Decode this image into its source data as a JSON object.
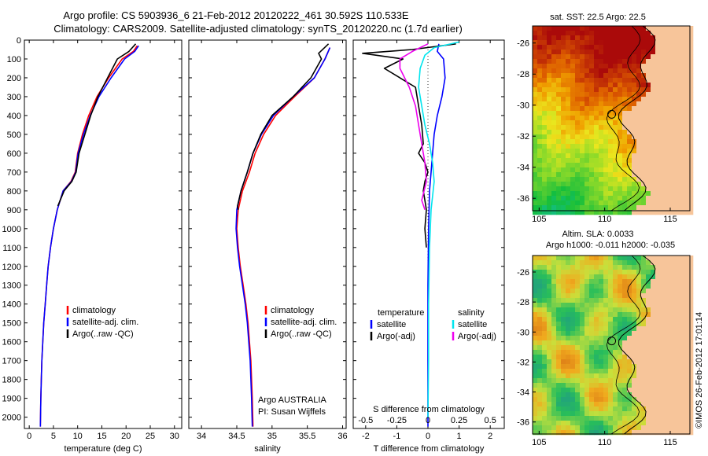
{
  "header": {
    "line1": "Argo profile: CS 5903936_6 21-Feb-2012 20120222_461 30.592S 110.533E",
    "line2": "Climatology: CARS2009. Satellite-adjusted climatology: synTS_20120220.nc (1.7d earlier)"
  },
  "credit": "©IMOS 26-Feb-2012 17:01:14",
  "colors": {
    "climatology": "#ff0000",
    "satellite": "#0000ff",
    "argo": "#000000",
    "sat_salinity": "#00e5ee",
    "argo_salinity": "#ee00ee",
    "land": "#f7c59a",
    "frame": "#000000"
  },
  "chart_data": [
    {
      "id": "temperature",
      "type": "line",
      "xlabel": "temperature (deg C)",
      "ylabel": "",
      "xlim": [
        -1,
        31.5
      ],
      "ylim": [
        2060,
        0
      ],
      "y_inverted": true,
      "xticks": [
        0,
        5,
        10,
        15,
        20,
        25,
        30
      ],
      "xtick_labels": [
        "0",
        "5",
        "10",
        "15",
        "20",
        "25",
        "30"
      ],
      "yticks": [
        0,
        100,
        200,
        300,
        400,
        500,
        600,
        700,
        800,
        900,
        1000,
        1100,
        1200,
        1300,
        1400,
        1500,
        1600,
        1700,
        1800,
        1900,
        2000
      ],
      "ytick_labels": [
        "0",
        "100",
        "200",
        "300",
        "400",
        "500",
        "600",
        "700",
        "800",
        "900",
        "1000",
        "1100",
        "1200",
        "1300",
        "1400",
        "1500",
        "1600",
        "1700",
        "1800",
        "1900",
        "2000"
      ],
      "legend": {
        "position": "lower-middle",
        "entries": [
          "climatology",
          "satellite-adj. clim.",
          "Argo(..raw -QC)"
        ]
      },
      "series": [
        {
          "name": "climatology",
          "color": "#ff0000",
          "x": [
            22.3,
            21.5,
            19.2,
            16.4,
            14.0,
            12.3,
            11.0,
            10.0,
            9.5,
            8.6,
            7.0,
            5.8,
            5.0,
            4.4,
            3.9,
            3.6,
            3.3,
            3.0,
            2.8,
            2.6,
            2.5,
            2.4,
            2.3
          ],
          "y": [
            30,
            60,
            100,
            200,
            300,
            400,
            500,
            600,
            700,
            750,
            800,
            900,
            1000,
            1100,
            1200,
            1300,
            1400,
            1500,
            1600,
            1700,
            1800,
            1900,
            2050
          ]
        },
        {
          "name": "satellite-adj. clim.",
          "color": "#0000ff",
          "x": [
            22.6,
            21.8,
            19.7,
            16.9,
            14.4,
            12.6,
            11.2,
            10.1,
            9.6,
            8.7,
            7.0,
            5.8,
            5.0,
            4.4,
            3.9,
            3.6,
            3.3,
            3.0,
            2.8,
            2.6,
            2.5,
            2.4,
            2.3
          ],
          "y": [
            30,
            60,
            100,
            200,
            300,
            400,
            500,
            600,
            700,
            750,
            800,
            900,
            1000,
            1100,
            1200,
            1300,
            1400,
            1500,
            1600,
            1700,
            1800,
            1900,
            2050
          ]
        },
        {
          "name": "Argo(..raw -QC)",
          "color": "#000000",
          "x": [
            22.0,
            20.6,
            18.2,
            16.2,
            14.2,
            12.7,
            11.5,
            10.3,
            9.7,
            8.8,
            7.2,
            5.9
          ],
          "y": [
            20,
            60,
            100,
            200,
            300,
            400,
            500,
            600,
            700,
            750,
            800,
            880
          ]
        }
      ]
    },
    {
      "id": "salinity",
      "type": "line",
      "xlabel": "salinity",
      "ylabel": "",
      "xlim": [
        33.82,
        36.05
      ],
      "ylim": [
        2060,
        0
      ],
      "y_inverted": true,
      "xticks": [
        34,
        34.5,
        35,
        35.5,
        36
      ],
      "xtick_labels": [
        "34",
        "34.5",
        "35",
        "35.5",
        "36"
      ],
      "legend": {
        "position": "lower-middle",
        "entries": [
          "climatology",
          "satellite-adj. clim.",
          "Argo(..raw -QC)"
        ]
      },
      "annotations": [
        "Argo AUSTRALIA",
        "PI: Susan Wijffels"
      ],
      "series": [
        {
          "name": "climatology",
          "color": "#ff0000",
          "x": [
            35.82,
            35.75,
            35.6,
            35.32,
            35.05,
            34.88,
            34.76,
            34.68,
            34.58,
            34.52,
            34.5,
            34.52,
            34.55,
            34.59,
            34.63,
            34.66,
            34.68,
            34.7,
            34.71,
            34.72,
            34.73
          ],
          "y": [
            40,
            100,
            200,
            300,
            400,
            500,
            600,
            700,
            800,
            900,
            1000,
            1100,
            1200,
            1300,
            1400,
            1500,
            1600,
            1700,
            1800,
            1900,
            2050
          ]
        },
        {
          "name": "satellite-adj. clim.",
          "color": "#0000ff",
          "x": [
            35.82,
            35.75,
            35.6,
            35.3,
            35.02,
            34.85,
            34.73,
            34.65,
            34.56,
            34.5,
            34.49,
            34.51,
            34.54,
            34.58,
            34.62,
            34.65,
            34.67,
            34.69,
            34.7,
            34.71,
            34.72
          ],
          "y": [
            40,
            100,
            200,
            300,
            400,
            500,
            600,
            700,
            800,
            900,
            1000,
            1100,
            1200,
            1300,
            1400,
            1500,
            1600,
            1700,
            1800,
            1900,
            2050
          ]
        },
        {
          "name": "Argo(..raw -QC)",
          "color": "#000000",
          "x": [
            35.8,
            35.66,
            35.7,
            35.55,
            35.3,
            35.0,
            34.84,
            34.73,
            34.65,
            34.56,
            34.51,
            34.52
          ],
          "y": [
            20,
            70,
            100,
            200,
            300,
            400,
            500,
            600,
            700,
            800,
            880,
            900
          ]
        }
      ]
    },
    {
      "id": "difference",
      "type": "line",
      "xlabel": "T difference from climatology",
      "top_label": "S difference from climatology",
      "xlim": [
        -2.4,
        2.45
      ],
      "ylim": [
        2060,
        0
      ],
      "y_inverted": true,
      "xticks": [
        -2,
        -1,
        0,
        1,
        2
      ],
      "xtick_labels": [
        "-2",
        "-1",
        "0",
        "1",
        "2"
      ],
      "sticks": [
        -2,
        -1,
        0,
        1,
        2
      ],
      "stick_labels": [
        "-0.5",
        "-0.25",
        "0",
        "0.25",
        "0.5"
      ],
      "legend": {
        "position": "lower-middle",
        "groups": [
          {
            "title": "temperature",
            "entries": [
              "satellite",
              "Argo(-adj)"
            ]
          },
          {
            "title": "salinity",
            "entries": [
              "satellite",
              "Argo(-adj)"
            ]
          }
        ]
      },
      "series": [
        {
          "name": "temperature satellite",
          "color": "#0000ff",
          "x": [
            0.35,
            0.3,
            0.5,
            0.55,
            0.45,
            0.3,
            0.2,
            0.15,
            0.1,
            0.05,
            0.02,
            0.0,
            0.0,
            0.0
          ],
          "y": [
            20,
            60,
            100,
            200,
            300,
            400,
            500,
            600,
            700,
            800,
            1000,
            1300,
            1700,
            2050
          ]
        },
        {
          "name": "temperature Argo(-adj)",
          "color": "#000000",
          "x": [
            0.9,
            -0.5,
            -2.1,
            -0.8,
            -1.4,
            -0.4,
            -0.3,
            -0.2,
            -0.15,
            -0.3,
            -0.1,
            0.0,
            -0.1,
            -0.15,
            -0.1,
            -0.05,
            -0.1,
            -0.05
          ],
          "y": [
            20,
            50,
            70,
            100,
            150,
            250,
            350,
            450,
            550,
            600,
            650,
            700,
            750,
            800,
            850,
            900,
            1000,
            1100
          ]
        },
        {
          "name": "salinity satellite",
          "color": "#00e5ee",
          "x": [
            1.0,
            0.2,
            -0.1,
            -0.25,
            -0.3,
            -0.2,
            -0.1,
            0.05,
            0.15,
            0.2,
            0.1,
            0.05,
            0.02,
            0.02,
            0.0
          ],
          "y": [
            10,
            40,
            80,
            150,
            250,
            350,
            450,
            550,
            650,
            750,
            900,
            1100,
            1400,
            1700,
            2000
          ]
        },
        {
          "name": "salinity Argo(-adj)",
          "color": "#ee00ee",
          "x": [
            0.0,
            -0.5,
            -0.9,
            -0.9,
            -0.6,
            -0.4,
            -0.3,
            -0.2,
            -0.1,
            -0.05,
            -0.2,
            -0.1
          ],
          "y": [
            20,
            60,
            100,
            150,
            250,
            350,
            450,
            550,
            650,
            750,
            850,
            900
          ]
        }
      ]
    },
    {
      "id": "sst_map",
      "type": "heatmap",
      "title": "sat. SST: 22.5 Argo: 22.5",
      "xlim": [
        104.5,
        116.5
      ],
      "ylim": [
        -36.8,
        -24.9
      ],
      "xticks": [
        105,
        110,
        115
      ],
      "xtick_labels": [
        "105",
        "110",
        "115"
      ],
      "yticks": [
        -26,
        -28,
        -30,
        -32,
        -34,
        -36
      ],
      "ytick_labels": [
        "-26",
        "-28",
        "-30",
        "-32",
        "-34",
        "-36"
      ],
      "marker": {
        "lon": 110.533,
        "lat": -30.592
      }
    },
    {
      "id": "sla_map",
      "type": "heatmap",
      "title": "Altim. SLA: 0.0033",
      "subtitle": "Argo h1000: -0.011 h2000: -0.035",
      "xlim": [
        104.5,
        116.5
      ],
      "ylim": [
        -36.8,
        -24.9
      ],
      "xticks": [
        105,
        110,
        115
      ],
      "xtick_labels": [
        "105",
        "110",
        "115"
      ],
      "yticks": [
        -26,
        -28,
        -30,
        -32,
        -34,
        -36
      ],
      "ytick_labels": [
        "-26",
        "-28",
        "-30",
        "-32",
        "-34",
        "-36"
      ],
      "marker": {
        "lon": 110.533,
        "lat": -30.592
      }
    }
  ]
}
